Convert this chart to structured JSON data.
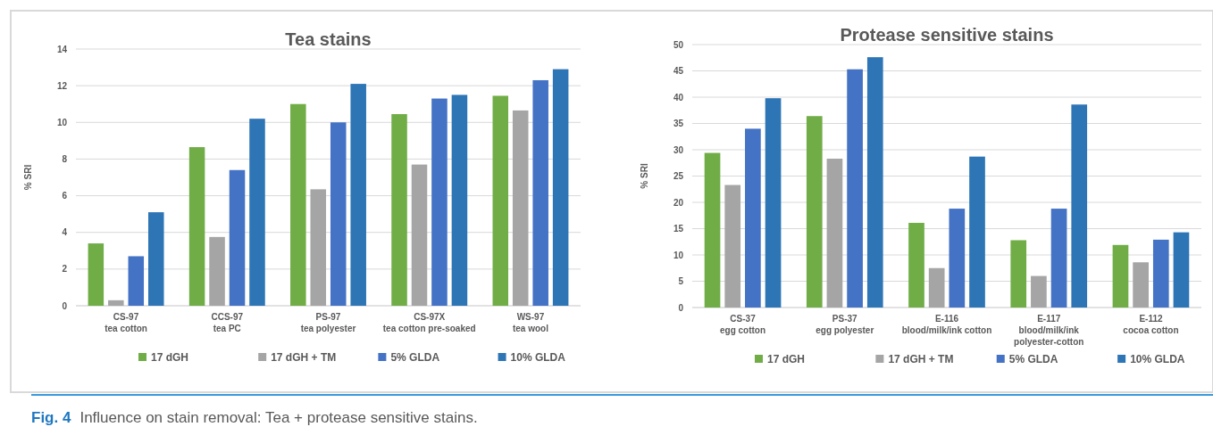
{
  "chart_data": [
    {
      "type": "bar",
      "title": "Tea stains",
      "ylabel": "% SRI",
      "categories": [
        "CS-97\ntea cotton",
        "CCS-97\ntea PC",
        "PS-97\ntea polyester",
        "CS-97X\ntea cotton pre-soaked",
        "WS-97\ntea wool"
      ],
      "series": [
        {
          "name": "17 dGH",
          "color": "#70ad47",
          "values": [
            3.4,
            8.65,
            11.0,
            10.45,
            11.45
          ]
        },
        {
          "name": "17 dGH + TM",
          "color": "#a5a5a5",
          "values": [
            0.3,
            3.75,
            6.35,
            7.7,
            10.65
          ]
        },
        {
          "name": "5% GLDA",
          "color": "#4472c4",
          "values": [
            2.7,
            7.4,
            10.0,
            11.3,
            12.3
          ]
        },
        {
          "name": "10% GLDA",
          "color": "#2e75b6",
          "values": [
            5.1,
            10.2,
            12.1,
            11.5,
            12.9
          ]
        }
      ],
      "ylim": [
        0,
        14
      ],
      "yticks": [
        0,
        2,
        4,
        6,
        8,
        10,
        12,
        14
      ],
      "grid": "y",
      "legend": "bottom",
      "annotations": [
        "Fig. 4  Influence on stain removal: Tea + protease sensitive stains."
      ]
    },
    {
      "type": "bar",
      "title": "Protease sensitive stains",
      "ylabel": "% SRI",
      "categories": [
        "CS-37\negg cotton",
        "PS-37\negg polyester",
        "E-116\nblood/milk/ink cotton",
        "E-117\nblood/milk/ink\npolyester-cotton",
        "E-112\ncocoa cotton"
      ],
      "series": [
        {
          "name": "17 dGH",
          "color": "#70ad47",
          "values": [
            29.4,
            36.4,
            16.1,
            12.8,
            11.9
          ]
        },
        {
          "name": "17 dGH + TM",
          "color": "#a5a5a5",
          "values": [
            23.3,
            28.3,
            7.5,
            6.0,
            8.6
          ]
        },
        {
          "name": "5% GLDA",
          "color": "#4472c4",
          "values": [
            34.0,
            45.3,
            18.8,
            18.8,
            12.9
          ]
        },
        {
          "name": "10% GLDA",
          "color": "#2e75b6",
          "values": [
            39.8,
            47.6,
            28.7,
            38.6,
            14.3
          ]
        }
      ],
      "ylim": [
        0,
        50
      ],
      "yticks": [
        0,
        5,
        10,
        15,
        20,
        25,
        30,
        35,
        40,
        45,
        50
      ],
      "grid": "y",
      "legend": "bottom"
    }
  ]
}
